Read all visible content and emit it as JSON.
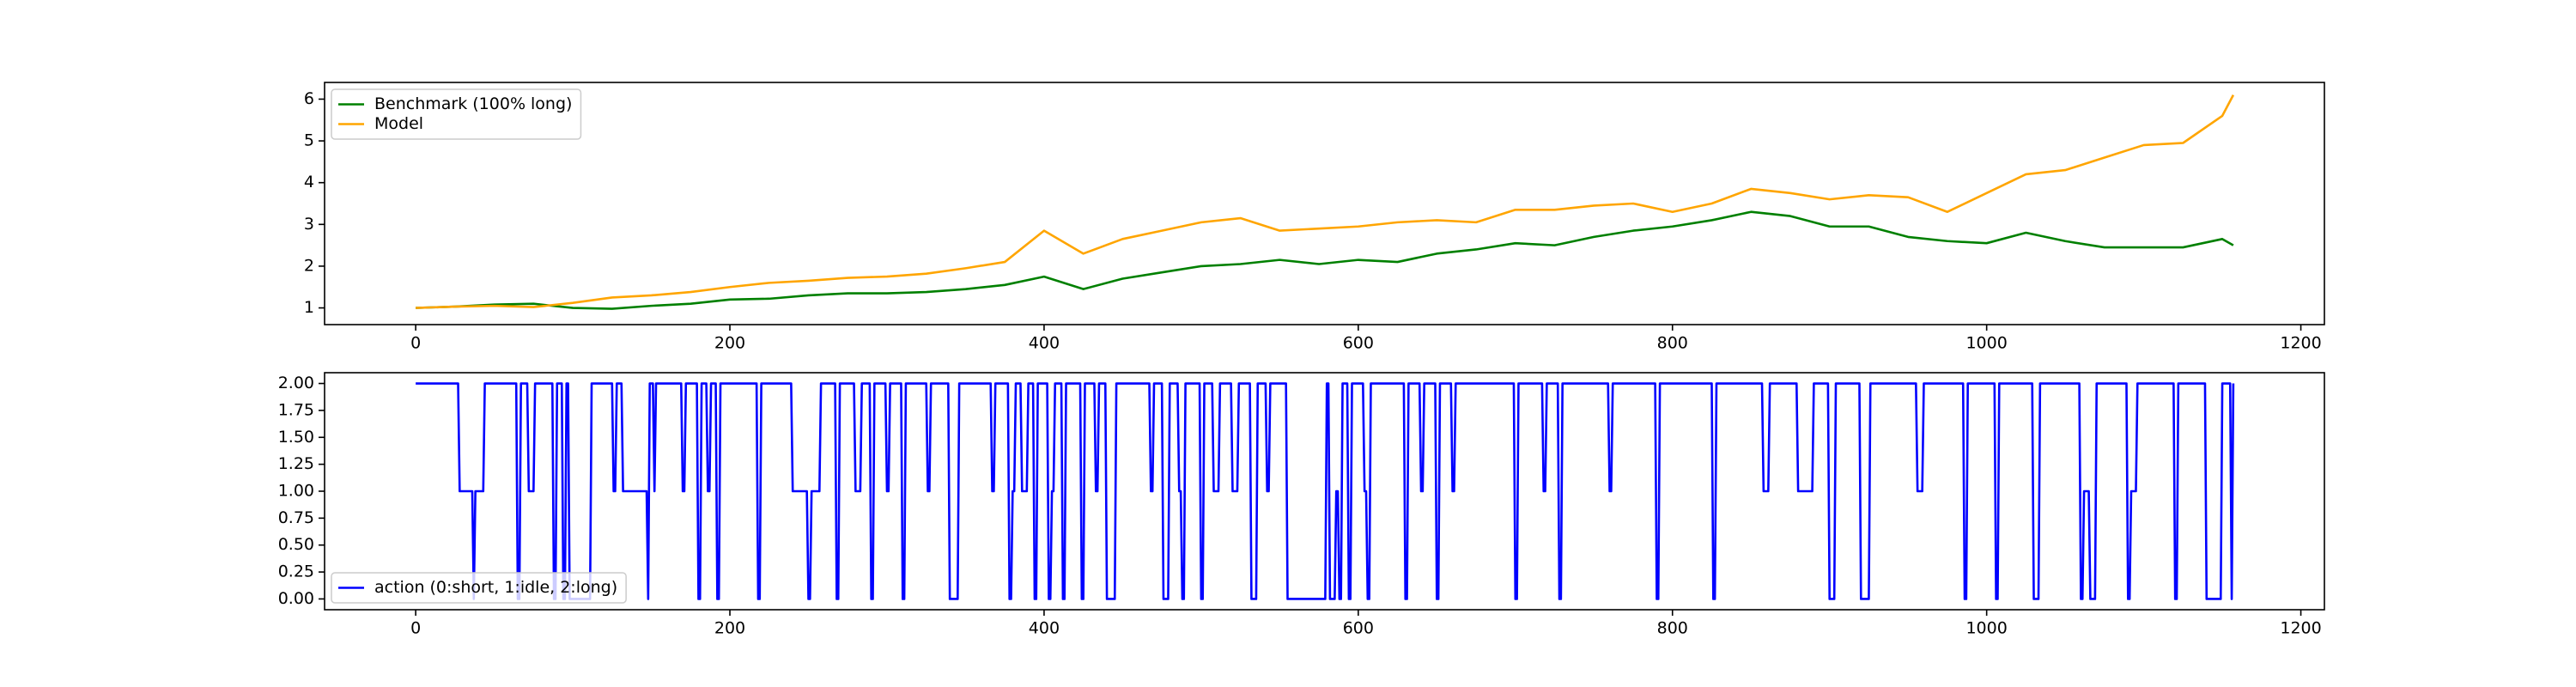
{
  "chart_data": [
    {
      "type": "line",
      "x": [
        0,
        25,
        50,
        75,
        100,
        125,
        150,
        175,
        200,
        225,
        250,
        275,
        300,
        325,
        350,
        375,
        400,
        425,
        450,
        475,
        500,
        525,
        550,
        575,
        600,
        625,
        650,
        675,
        700,
        725,
        750,
        775,
        800,
        825,
        850,
        875,
        900,
        925,
        950,
        975,
        1000,
        1025,
        1050,
        1075,
        1100,
        1125,
        1150,
        1157
      ],
      "series": [
        {
          "name": "Benchmark (100% long)",
          "color": "green",
          "values": [
            1.0,
            1.03,
            1.08,
            1.1,
            1.0,
            0.98,
            1.05,
            1.1,
            1.2,
            1.22,
            1.3,
            1.35,
            1.35,
            1.38,
            1.45,
            1.55,
            1.75,
            1.45,
            1.7,
            1.85,
            2.0,
            2.05,
            2.15,
            2.05,
            2.15,
            2.1,
            2.3,
            2.4,
            2.55,
            2.5,
            2.7,
            2.85,
            2.95,
            3.1,
            3.3,
            3.2,
            2.95,
            2.95,
            2.7,
            2.6,
            2.55,
            2.8,
            2.6,
            2.45,
            2.45,
            2.45,
            2.65,
            2.5
          ]
        },
        {
          "name": "Model",
          "color": "orange",
          "values": [
            1.0,
            1.03,
            1.05,
            1.02,
            1.12,
            1.25,
            1.3,
            1.38,
            1.5,
            1.6,
            1.65,
            1.72,
            1.75,
            1.82,
            1.95,
            2.1,
            2.85,
            2.3,
            2.65,
            2.85,
            3.05,
            3.15,
            2.85,
            2.9,
            2.95,
            3.05,
            3.1,
            3.05,
            3.35,
            3.35,
            3.45,
            3.5,
            3.3,
            3.5,
            3.85,
            3.75,
            3.6,
            3.7,
            3.65,
            3.3,
            3.75,
            4.2,
            4.3,
            4.6,
            4.9,
            4.95,
            5.6,
            6.1
          ]
        }
      ],
      "xlim": [
        -58,
        1215
      ],
      "xticks": [
        0,
        200,
        400,
        600,
        800,
        1000,
        1200
      ],
      "ylim": [
        0.6,
        6.4
      ],
      "yticks": [
        1,
        2,
        3,
        4,
        5,
        6
      ],
      "legend": "upper left"
    },
    {
      "type": "line",
      "x": [
        0,
        27,
        28,
        36,
        37,
        38,
        43,
        44,
        64,
        65,
        66,
        67,
        71,
        72,
        75,
        76,
        87,
        88,
        89,
        90,
        93,
        94,
        95,
        96,
        97,
        98,
        111,
        112,
        125,
        126,
        127,
        128,
        131,
        132,
        147,
        148,
        149,
        151,
        152,
        153,
        169,
        170,
        171,
        172,
        179,
        180,
        181,
        182,
        185,
        186,
        187,
        188,
        191,
        192,
        193,
        194,
        217,
        218,
        219,
        220,
        239,
        240,
        249,
        250,
        251,
        252,
        257,
        258,
        267,
        268,
        269,
        270,
        279,
        280,
        283,
        284,
        289,
        290,
        291,
        292,
        299,
        300,
        301,
        302,
        309,
        310,
        311,
        312,
        325,
        326,
        327,
        328,
        339,
        340,
        345,
        346,
        366,
        367,
        368,
        369,
        377,
        378,
        379,
        380,
        381,
        382,
        385,
        386,
        389,
        390,
        393,
        394,
        395,
        396,
        402,
        403,
        404,
        405,
        406,
        407,
        411,
        412,
        413,
        414,
        423,
        424,
        425,
        426,
        432,
        433,
        434,
        435,
        439,
        440,
        445,
        446,
        467,
        468,
        469,
        470,
        475,
        476,
        479,
        480,
        485,
        486,
        487,
        488,
        489,
        490,
        499,
        500,
        501,
        502,
        507,
        508,
        511,
        512,
        519,
        520,
        523,
        524,
        531,
        532,
        535,
        536,
        541,
        542,
        543,
        544,
        554,
        555,
        579,
        580,
        581,
        582,
        585,
        586,
        587,
        588,
        589,
        590,
        593,
        594,
        595,
        596,
        603,
        604,
        605,
        606,
        607,
        608,
        629,
        630,
        631,
        632,
        639,
        640,
        641,
        642,
        649,
        650,
        651,
        652,
        659,
        660,
        661,
        662,
        699,
        700,
        701,
        702,
        717,
        718,
        719,
        720,
        727,
        728,
        729,
        730,
        759,
        760,
        761,
        762,
        789,
        790,
        791,
        792,
        825,
        826,
        827,
        828,
        857,
        858,
        861,
        862,
        879,
        880,
        889,
        890,
        899,
        900,
        903,
        904,
        919,
        920,
        925,
        926,
        955,
        956,
        959,
        960,
        985,
        986,
        987,
        988,
        1005,
        1006,
        1007,
        1008,
        1029,
        1030,
        1033,
        1034,
        1059,
        1060,
        1061,
        1062,
        1065,
        1066,
        1069,
        1070,
        1089,
        1090,
        1091,
        1092,
        1095,
        1096,
        1119,
        1120,
        1121,
        1122,
        1139,
        1140,
        1149,
        1150,
        1155,
        1156,
        1157
      ],
      "series": [
        {
          "name": "action (0:short, 1:idle, 2:long)",
          "color": "blue",
          "values": [
            2,
            2,
            1,
            1,
            0,
            1,
            1,
            2,
            2,
            0,
            0,
            2,
            2,
            1,
            1,
            2,
            2,
            0,
            0,
            2,
            2,
            0,
            0,
            2,
            2,
            0,
            0,
            2,
            2,
            1,
            1,
            2,
            2,
            1,
            1,
            0,
            2,
            2,
            1,
            2,
            2,
            1,
            1,
            2,
            2,
            0,
            0,
            2,
            2,
            1,
            1,
            2,
            2,
            0,
            0,
            2,
            2,
            0,
            0,
            2,
            2,
            1,
            1,
            0,
            0,
            1,
            1,
            2,
            2,
            0,
            0,
            2,
            2,
            1,
            1,
            2,
            2,
            0,
            0,
            2,
            2,
            1,
            1,
            2,
            2,
            0,
            0,
            2,
            2,
            1,
            1,
            2,
            2,
            0,
            0,
            2,
            2,
            1,
            1,
            2,
            2,
            0,
            0,
            1,
            1,
            2,
            2,
            1,
            1,
            2,
            2,
            0,
            0,
            2,
            2,
            0,
            0,
            1,
            1,
            2,
            2,
            0,
            0,
            2,
            2,
            0,
            0,
            2,
            2,
            1,
            1,
            2,
            2,
            0,
            0,
            2,
            2,
            1,
            1,
            2,
            2,
            0,
            0,
            2,
            2,
            1,
            1,
            0,
            0,
            2,
            2,
            0,
            0,
            2,
            2,
            1,
            1,
            2,
            2,
            1,
            1,
            2,
            2,
            0,
            0,
            2,
            2,
            1,
            1,
            2,
            2,
            0,
            0,
            2,
            2,
            0,
            0,
            1,
            1,
            0,
            0,
            2,
            2,
            0,
            0,
            2,
            2,
            1,
            1,
            0,
            0,
            2,
            2,
            0,
            0,
            2,
            2,
            1,
            1,
            2,
            2,
            0,
            0,
            2,
            2,
            1,
            1,
            2,
            2,
            0,
            0,
            2,
            2,
            1,
            1,
            2,
            2,
            0,
            0,
            2,
            2,
            1,
            1,
            2,
            2,
            0,
            0,
            2,
            2,
            0,
            0,
            2,
            2,
            1,
            1,
            2,
            2,
            1,
            1,
            2,
            2,
            0,
            0,
            2,
            2,
            0,
            0,
            2,
            2,
            1,
            1,
            2,
            2,
            0,
            0,
            2,
            2,
            0,
            0,
            2,
            2,
            0,
            0,
            2,
            2,
            0,
            0,
            1,
            1,
            0,
            0,
            2,
            2,
            0,
            0,
            1,
            1,
            2,
            2,
            0,
            0,
            2,
            2,
            0,
            0,
            2,
            2,
            0,
            2
          ]
        }
      ],
      "xlim": [
        -58,
        1215
      ],
      "xticks": [
        0,
        200,
        400,
        600,
        800,
        1000,
        1200
      ],
      "ylim": [
        -0.1,
        2.1
      ],
      "yticks": [
        {
          "value": 0,
          "label": "0.00"
        },
        {
          "value": 0.25,
          "label": "0.25"
        },
        {
          "value": 0.5,
          "label": "0.50"
        },
        {
          "value": 0.75,
          "label": "0.75"
        },
        {
          "value": 1,
          "label": "1.00"
        },
        {
          "value": 1.25,
          "label": "1.25"
        },
        {
          "value": 1.5,
          "label": "1.50"
        },
        {
          "value": 1.75,
          "label": "1.75"
        },
        {
          "value": 2,
          "label": "2.00"
        }
      ],
      "legend": "lower left"
    }
  ]
}
